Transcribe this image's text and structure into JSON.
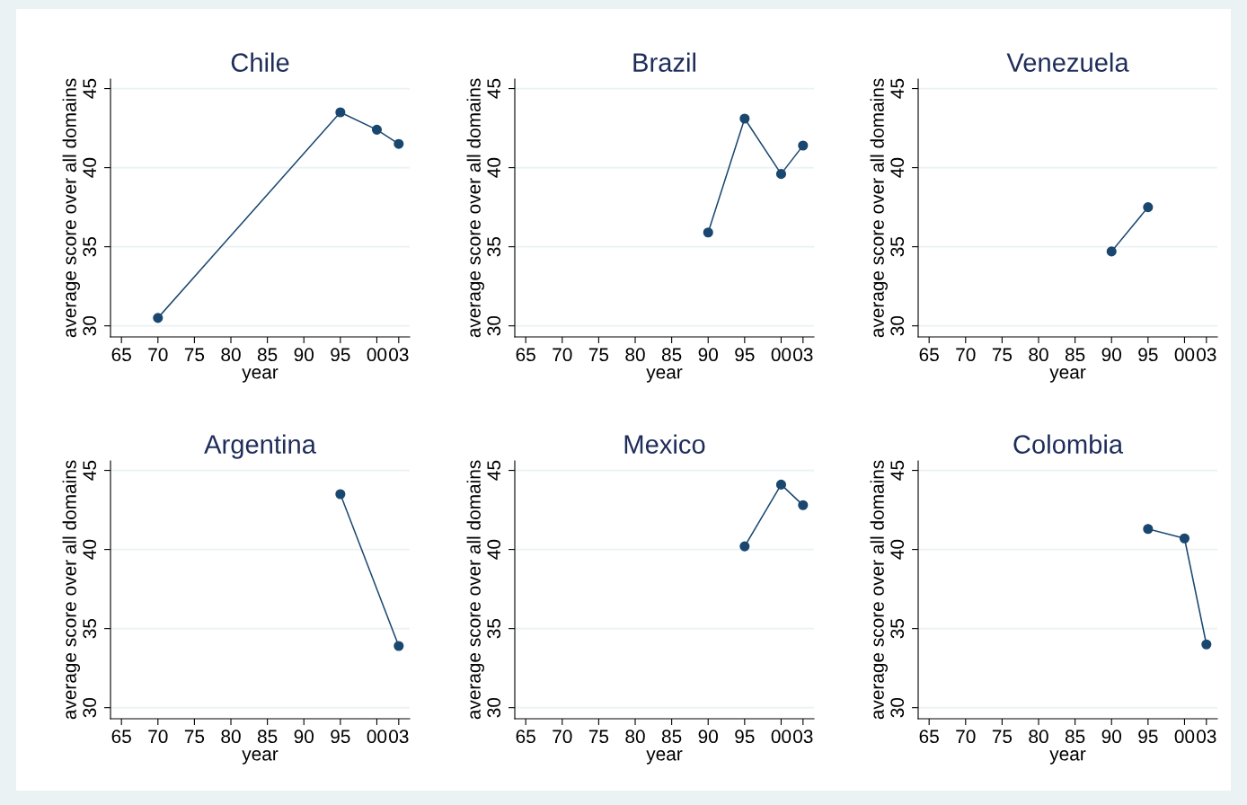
{
  "chart_data": [
    {
      "type": "line",
      "title": "Chile",
      "xlabel": "year",
      "ylabel": "average score over all domains",
      "x": [
        1970,
        1995,
        2000,
        2003
      ],
      "values": [
        30.5,
        43.5,
        42.4,
        41.5
      ],
      "color": "#1a476f",
      "marker": "circle",
      "grid": "y",
      "xlim": [
        1963.5,
        2004.5
      ],
      "ylim": [
        29.3,
        45.6
      ],
      "yticks": [
        30,
        35,
        40,
        45
      ],
      "xticks": [
        {
          "value": 1965,
          "label": "65"
        },
        {
          "value": 1970,
          "label": "70"
        },
        {
          "value": 1975,
          "label": "75"
        },
        {
          "value": 1980,
          "label": "80"
        },
        {
          "value": 1985,
          "label": "85"
        },
        {
          "value": 1990,
          "label": "90"
        },
        {
          "value": 1995,
          "label": "95"
        },
        {
          "value": 2000,
          "label": "00"
        },
        {
          "value": 2003,
          "label": "03"
        }
      ]
    },
    {
      "type": "line",
      "title": "Brazil",
      "xlabel": "year",
      "ylabel": "average score over all domains",
      "x": [
        1990,
        1995,
        2000,
        2003
      ],
      "values": [
        35.9,
        43.1,
        39.6,
        41.4
      ],
      "color": "#1a476f",
      "marker": "circle",
      "grid": "y",
      "xlim": [
        1963.5,
        2004.5
      ],
      "ylim": [
        29.3,
        45.6
      ],
      "yticks": [
        30,
        35,
        40,
        45
      ],
      "xticks": [
        {
          "value": 1965,
          "label": "65"
        },
        {
          "value": 1970,
          "label": "70"
        },
        {
          "value": 1975,
          "label": "75"
        },
        {
          "value": 1980,
          "label": "80"
        },
        {
          "value": 1985,
          "label": "85"
        },
        {
          "value": 1990,
          "label": "90"
        },
        {
          "value": 1995,
          "label": "95"
        },
        {
          "value": 2000,
          "label": "00"
        },
        {
          "value": 2003,
          "label": "03"
        }
      ]
    },
    {
      "type": "line",
      "title": "Venezuela",
      "xlabel": "year",
      "ylabel": "average score over all domains",
      "x": [
        1990,
        1995
      ],
      "values": [
        34.7,
        37.5
      ],
      "color": "#1a476f",
      "marker": "circle",
      "grid": "y",
      "xlim": [
        1963.5,
        2004.5
      ],
      "ylim": [
        29.3,
        45.6
      ],
      "yticks": [
        30,
        35,
        40,
        45
      ],
      "xticks": [
        {
          "value": 1965,
          "label": "65"
        },
        {
          "value": 1970,
          "label": "70"
        },
        {
          "value": 1975,
          "label": "75"
        },
        {
          "value": 1980,
          "label": "80"
        },
        {
          "value": 1985,
          "label": "85"
        },
        {
          "value": 1990,
          "label": "90"
        },
        {
          "value": 1995,
          "label": "95"
        },
        {
          "value": 2000,
          "label": "00"
        },
        {
          "value": 2003,
          "label": "03"
        }
      ]
    },
    {
      "type": "line",
      "title": "Argentina",
      "xlabel": "year",
      "ylabel": "average score over all domains",
      "x": [
        1995,
        2003
      ],
      "values": [
        43.5,
        33.9
      ],
      "color": "#1a476f",
      "marker": "circle",
      "grid": "y",
      "xlim": [
        1963.5,
        2004.5
      ],
      "ylim": [
        29.3,
        45.6
      ],
      "yticks": [
        30,
        35,
        40,
        45
      ],
      "xticks": [
        {
          "value": 1965,
          "label": "65"
        },
        {
          "value": 1970,
          "label": "70"
        },
        {
          "value": 1975,
          "label": "75"
        },
        {
          "value": 1980,
          "label": "80"
        },
        {
          "value": 1985,
          "label": "85"
        },
        {
          "value": 1990,
          "label": "90"
        },
        {
          "value": 1995,
          "label": "95"
        },
        {
          "value": 2000,
          "label": "00"
        },
        {
          "value": 2003,
          "label": "03"
        }
      ]
    },
    {
      "type": "line",
      "title": "Mexico",
      "xlabel": "year",
      "ylabel": "average score over all domains",
      "x": [
        1995,
        2000,
        2003
      ],
      "values": [
        40.2,
        44.1,
        42.8
      ],
      "color": "#1a476f",
      "marker": "circle",
      "grid": "y",
      "xlim": [
        1963.5,
        2004.5
      ],
      "ylim": [
        29.3,
        45.6
      ],
      "yticks": [
        30,
        35,
        40,
        45
      ],
      "xticks": [
        {
          "value": 1965,
          "label": "65"
        },
        {
          "value": 1970,
          "label": "70"
        },
        {
          "value": 1975,
          "label": "75"
        },
        {
          "value": 1980,
          "label": "80"
        },
        {
          "value": 1985,
          "label": "85"
        },
        {
          "value": 1990,
          "label": "90"
        },
        {
          "value": 1995,
          "label": "95"
        },
        {
          "value": 2000,
          "label": "00"
        },
        {
          "value": 2003,
          "label": "03"
        }
      ]
    },
    {
      "type": "line",
      "title": "Colombia",
      "xlabel": "year",
      "ylabel": "average score over all domains",
      "x": [
        1995,
        2000,
        2003
      ],
      "values": [
        41.3,
        40.7,
        34.0
      ],
      "color": "#1a476f",
      "marker": "circle",
      "grid": "y",
      "xlim": [
        1963.5,
        2004.5
      ],
      "ylim": [
        29.3,
        45.6
      ],
      "yticks": [
        30,
        35,
        40,
        45
      ],
      "xticks": [
        {
          "value": 1965,
          "label": "65"
        },
        {
          "value": 1970,
          "label": "70"
        },
        {
          "value": 1975,
          "label": "75"
        },
        {
          "value": 1980,
          "label": "80"
        },
        {
          "value": 1985,
          "label": "85"
        },
        {
          "value": 1990,
          "label": "90"
        },
        {
          "value": 1995,
          "label": "95"
        },
        {
          "value": 2000,
          "label": "00"
        },
        {
          "value": 2003,
          "label": "03"
        }
      ]
    }
  ]
}
